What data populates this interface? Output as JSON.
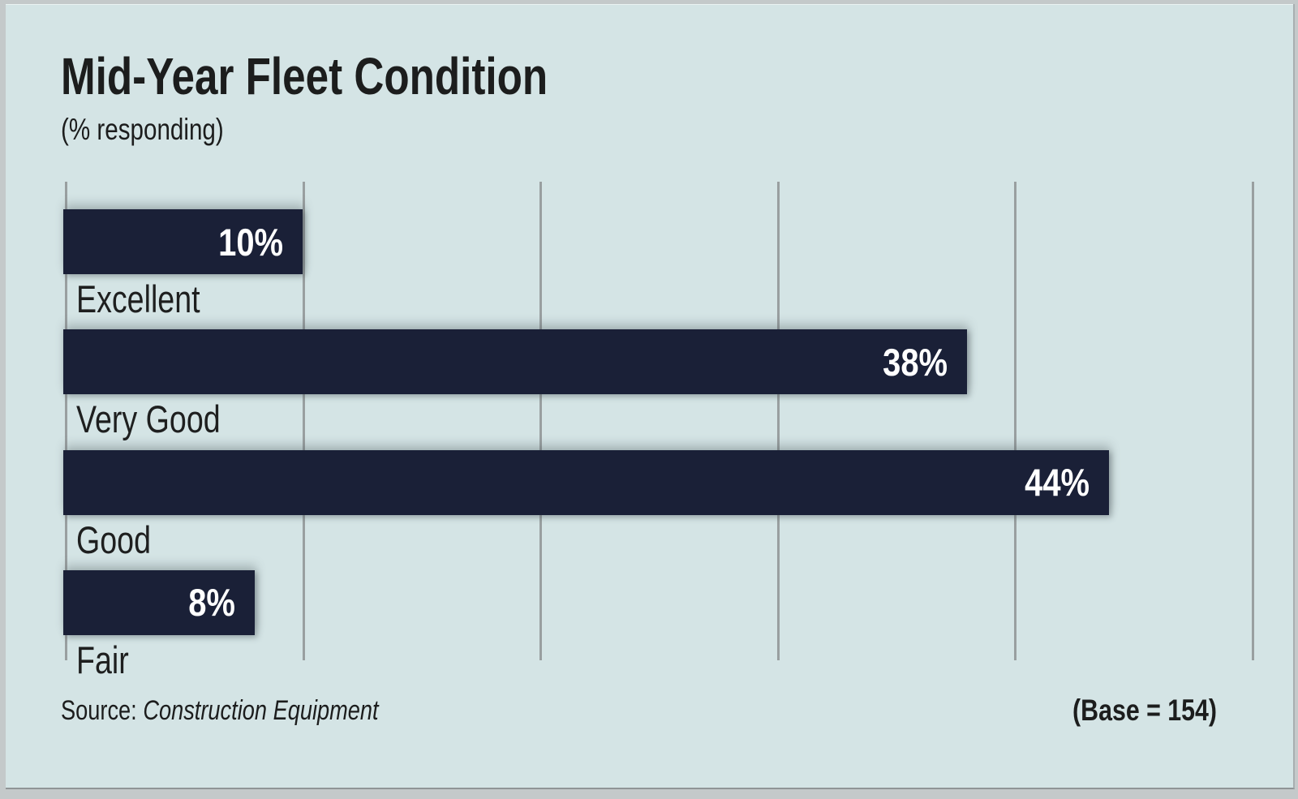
{
  "chart_data": {
    "type": "bar",
    "orientation": "horizontal",
    "title": "Mid-Year Fleet Condition",
    "subtitle": "(% responding)",
    "categories": [
      "Excellent",
      "Very Good",
      "Good",
      "Fair"
    ],
    "values": [
      10,
      38,
      44,
      8
    ],
    "value_labels": [
      "10%",
      "38%",
      "44%",
      "8%"
    ],
    "xlim": [
      0,
      50
    ],
    "gridline_interval": 10,
    "grid": true,
    "legend": "none",
    "source_label": "Source:",
    "source_value": "Construction Equipment",
    "base_note": "(Base = 154)",
    "colors": {
      "bar": "#1a2037",
      "panel_bg": "#d4e4e5",
      "outer_bg": "#c4c9ca",
      "gridline": "#999fa0",
      "value_text": "#ffffff",
      "text": "#1c1d1d"
    }
  }
}
